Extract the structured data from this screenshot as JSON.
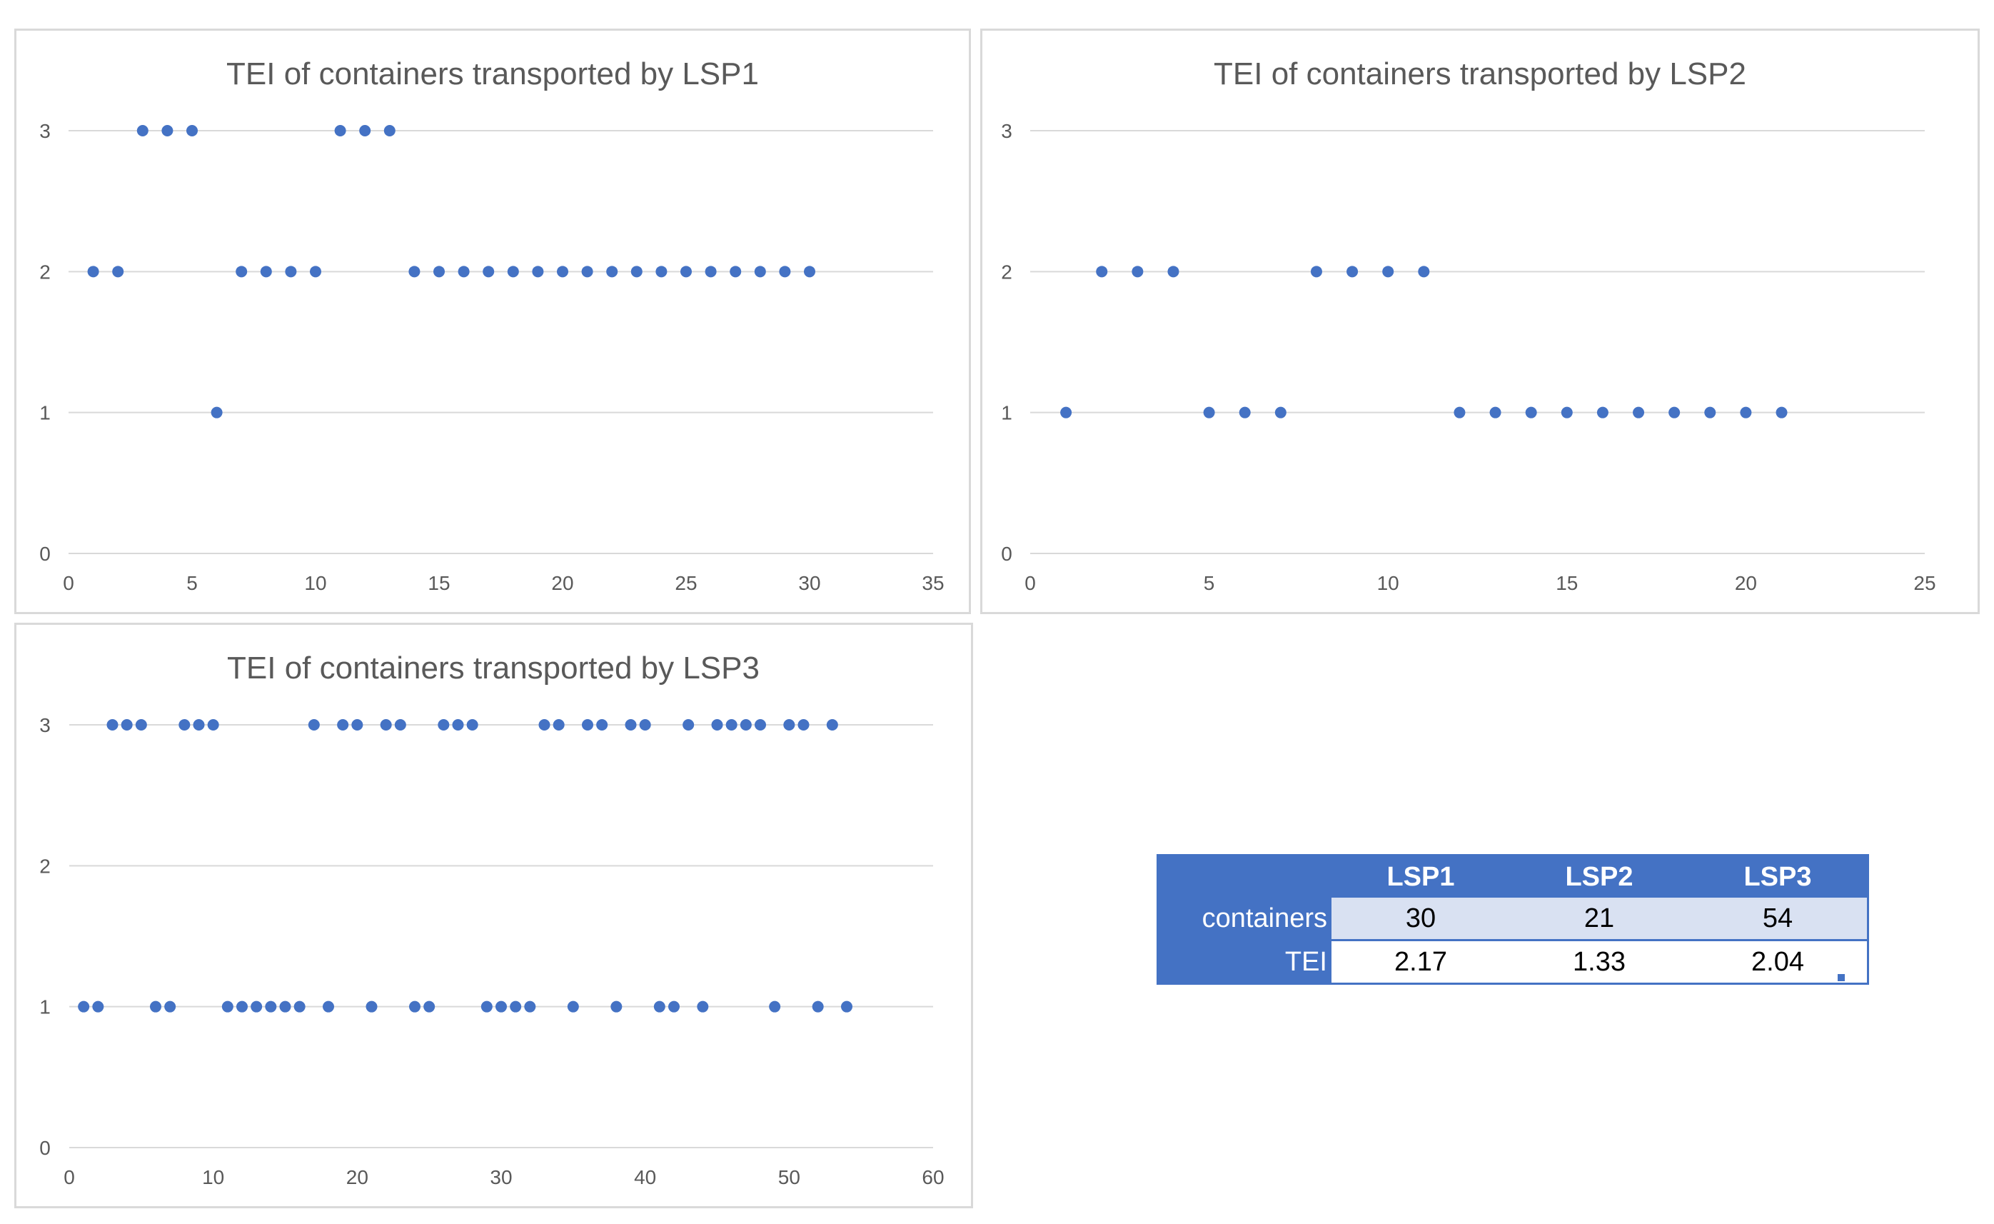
{
  "chart_data": [
    {
      "type": "scatter",
      "title": "TEI of containers transported by LSP1",
      "xlabel": "",
      "ylabel": "",
      "xlim": [
        0,
        35
      ],
      "ylim": [
        0,
        3
      ],
      "x_ticks": [
        "0",
        "5",
        "10",
        "15",
        "20",
        "25",
        "30",
        "35"
      ],
      "y_ticks": [
        "0",
        "1",
        "2",
        "3"
      ],
      "grid": true,
      "series": [
        {
          "name": "LSP1",
          "x": [
            1,
            2,
            3,
            4,
            5,
            6,
            7,
            8,
            9,
            10,
            11,
            12,
            13,
            14,
            15,
            16,
            17,
            18,
            19,
            20,
            21,
            22,
            23,
            24,
            25,
            26,
            27,
            28,
            29,
            30
          ],
          "y": [
            2,
            2,
            3,
            3,
            3,
            1,
            2,
            2,
            2,
            2,
            3,
            3,
            3,
            2,
            2,
            2,
            2,
            2,
            2,
            2,
            2,
            2,
            2,
            2,
            2,
            2,
            2,
            2,
            2,
            2
          ]
        }
      ]
    },
    {
      "type": "scatter",
      "title": "TEI of containers transported by LSP2",
      "xlabel": "",
      "ylabel": "",
      "xlim": [
        0,
        25
      ],
      "ylim": [
        0,
        3
      ],
      "x_ticks": [
        "0",
        "5",
        "10",
        "15",
        "20",
        "25"
      ],
      "y_ticks": [
        "0",
        "1",
        "2",
        "3"
      ],
      "grid": true,
      "series": [
        {
          "name": "LSP2",
          "x": [
            1,
            2,
            3,
            4,
            5,
            6,
            7,
            8,
            9,
            10,
            11,
            12,
            13,
            14,
            15,
            16,
            17,
            18,
            19,
            20,
            21
          ],
          "y": [
            1,
            2,
            2,
            2,
            1,
            1,
            1,
            2,
            2,
            2,
            2,
            1,
            1,
            1,
            1,
            1,
            1,
            1,
            1,
            1,
            1
          ]
        }
      ]
    },
    {
      "type": "scatter",
      "title": "TEI of containers transported by LSP3",
      "xlabel": "",
      "ylabel": "",
      "xlim": [
        0,
        60
      ],
      "ylim": [
        0,
        3
      ],
      "x_ticks": [
        "0",
        "10",
        "20",
        "30",
        "40",
        "50",
        "60"
      ],
      "y_ticks": [
        "0",
        "1",
        "2",
        "3"
      ],
      "grid": true,
      "series": [
        {
          "name": "LSP3",
          "x": [
            1,
            2,
            3,
            4,
            5,
            6,
            7,
            8,
            9,
            10,
            11,
            12,
            13,
            14,
            15,
            16,
            17,
            18,
            19,
            20,
            21,
            22,
            23,
            24,
            25,
            26,
            27,
            28,
            29,
            30,
            31,
            32,
            33,
            34,
            35,
            36,
            37,
            38,
            39,
            40,
            41,
            42,
            43,
            44,
            45,
            46,
            47,
            48,
            49,
            50,
            51,
            52,
            53,
            54
          ],
          "y": [
            1,
            1,
            3,
            3,
            3,
            1,
            1,
            3,
            3,
            3,
            1,
            1,
            1,
            1,
            1,
            1,
            3,
            1,
            3,
            3,
            1,
            3,
            3,
            1,
            1,
            3,
            3,
            3,
            1,
            1,
            1,
            1,
            3,
            3,
            1,
            3,
            3,
            1,
            3,
            3,
            1,
            1,
            3,
            1,
            3,
            3,
            3,
            3,
            1,
            3,
            3,
            1,
            3,
            1
          ]
        }
      ]
    }
  ],
  "summary_table": {
    "columns": [
      "",
      "LSP1",
      "LSP2",
      "LSP3"
    ],
    "rows": [
      {
        "label": "containers",
        "values": [
          "30",
          "21",
          "54"
        ]
      },
      {
        "label": "TEI",
        "values": [
          "2.17",
          "1.33",
          "2.04"
        ]
      }
    ]
  },
  "colors": {
    "marker": "#4472c4",
    "grid": "#d9d9d9",
    "text": "#595959",
    "table_header": "#4472c4",
    "table_band": "#d9e1f2"
  }
}
